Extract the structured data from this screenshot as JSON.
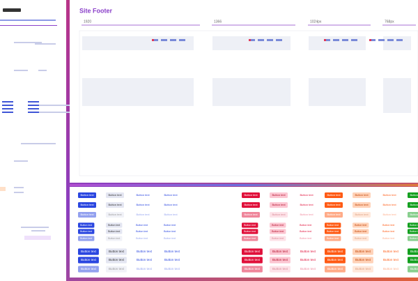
{
  "frame": {
    "title": "Site Footer",
    "breakpoints": [
      "1920",
      "1366",
      "1024px",
      "768px"
    ]
  },
  "buttons": {
    "label": "Button text"
  }
}
